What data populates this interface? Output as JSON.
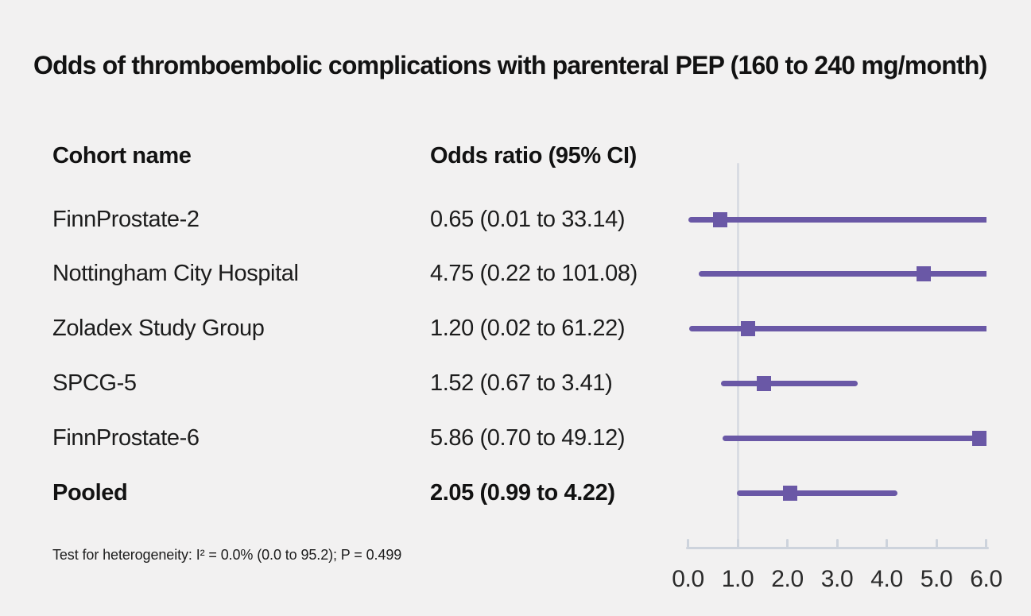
{
  "title": "Odds of thromboembolic complications with parenteral PEP (160 to 240 mg/month)",
  "table": {
    "col1_header": "Cohort name",
    "col2_header": "Odds ratio (95% CI)",
    "rows": [
      {
        "label": "FinnProstate-2",
        "value_text": "0.65 (0.01 to 33.14)"
      },
      {
        "label": "Nottingham City Hospital",
        "value_text": "4.75 (0.22 to 101.08)"
      },
      {
        "label": "Zoladex Study Group",
        "value_text": "1.20 (0.02 to 61.22)"
      },
      {
        "label": "SPCG-5",
        "value_text": "1.52 (0.67 to 3.41)"
      },
      {
        "label": "FinnProstate-6",
        "value_text": "5.86 (0.70 to 49.12)"
      },
      {
        "label": "Pooled",
        "value_text": "2.05 (0.99 to 4.22)"
      }
    ]
  },
  "footnote": "Test for heterogeneity: I² = 0.0% (0.0 to 95.2); P = 0.499",
  "colors": {
    "background": "#f2f1f1",
    "marker": "#6a58a6",
    "axis": "#cdd3dc",
    "reference_line": "#d9dce3",
    "text": "#1c1c1c"
  },
  "chart_data": {
    "type": "forest",
    "title": "Odds of thromboembolic complications with parenteral PEP (160 to 240 mg/month)",
    "xlabel": "Odds ratio",
    "xlim": [
      0.0,
      6.0
    ],
    "x_ticks": [
      0.0,
      1.0,
      2.0,
      3.0,
      4.0,
      5.0,
      6.0
    ],
    "tick_labels": [
      "0.0",
      "1.0",
      "2.0",
      "3.0",
      "4.0",
      "5.0",
      "6.0"
    ],
    "reference_line_x": 1.0,
    "grid": false,
    "legend": false,
    "series": [
      {
        "name": "FinnProstate-2",
        "estimate": 0.65,
        "ci_low": 0.01,
        "ci_high": 33.14,
        "pooled": false
      },
      {
        "name": "Nottingham City Hospital",
        "estimate": 4.75,
        "ci_low": 0.22,
        "ci_high": 101.08,
        "pooled": false
      },
      {
        "name": "Zoladex Study Group",
        "estimate": 1.2,
        "ci_low": 0.02,
        "ci_high": 61.22,
        "pooled": false
      },
      {
        "name": "SPCG-5",
        "estimate": 1.52,
        "ci_low": 0.67,
        "ci_high": 3.41,
        "pooled": false
      },
      {
        "name": "FinnProstate-6",
        "estimate": 5.86,
        "ci_low": 0.7,
        "ci_high": 49.12,
        "pooled": false
      },
      {
        "name": "Pooled",
        "estimate": 2.05,
        "ci_low": 0.99,
        "ci_high": 4.22,
        "pooled": true
      }
    ],
    "heterogeneity_note": "Test for heterogeneity: I² = 0.0% (0.0 to 95.2); P = 0.499"
  }
}
